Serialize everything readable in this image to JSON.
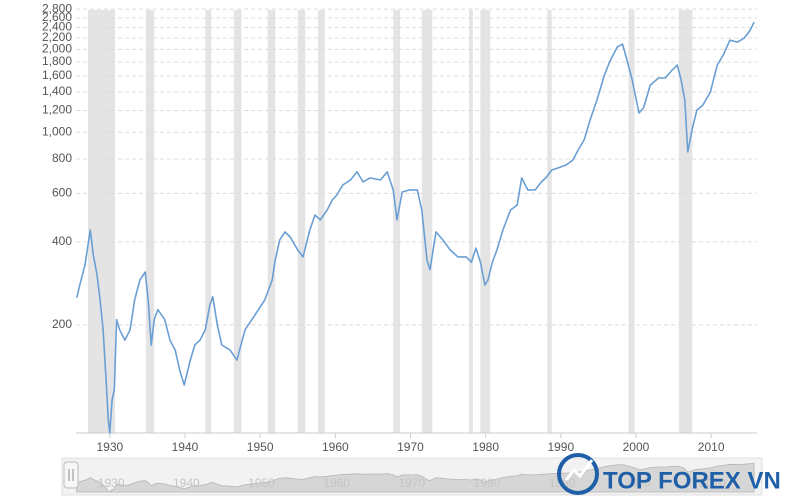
{
  "chart_data": {
    "type": "line",
    "log_scale": true,
    "grid": true,
    "color": "#6a9fd4",
    "band_color": "#e4e4e4",
    "watermark": "TOP FOREX VN",
    "xlim": [
      1925.5,
      2016.1
    ],
    "ylim": [
      81,
      2850
    ],
    "xticks": [
      1930,
      1940,
      1950,
      1960,
      1970,
      1980,
      1990,
      2000,
      2010
    ],
    "yticks": [
      200,
      400,
      600,
      800,
      {
        "value": 1000,
        "label": "1,000"
      },
      {
        "value": 1200,
        "label": "1,200"
      },
      {
        "value": 1400,
        "label": "1,400"
      },
      {
        "value": 1600,
        "label": "1,600"
      },
      {
        "value": 1800,
        "label": "1,800"
      },
      {
        "value": 2000,
        "label": "2,000"
      },
      {
        "value": 2200,
        "label": "2,200"
      },
      {
        "value": 2400,
        "label": "2,400"
      },
      {
        "value": 2600,
        "label": "2,600"
      },
      {
        "value": 2800,
        "label": "2,800"
      }
    ],
    "shaded_periods": [
      [
        1927.1,
        1930.7
      ],
      [
        1934.8,
        1935.9
      ],
      [
        1942.7,
        1943.5
      ],
      [
        1946.5,
        1947.5
      ],
      [
        1951.0,
        1952.0
      ],
      [
        1955.0,
        1956.0
      ],
      [
        1957.7,
        1958.6
      ],
      [
        1967.7,
        1968.6
      ],
      [
        1971.5,
        1972.9
      ],
      [
        1977.8,
        1978.3
      ],
      [
        1979.3,
        1980.6
      ],
      [
        1988.2,
        1988.8
      ],
      [
        1999.0,
        1999.8
      ],
      [
        2005.7,
        2007.5
      ]
    ],
    "x": [
      1925.6,
      1926.0,
      1926.7,
      1927.1,
      1927.4,
      1927.8,
      1928.3,
      1928.7,
      1929.1,
      1929.5,
      1929.8,
      1930.0,
      1930.3,
      1930.6,
      1930.9,
      1931.3,
      1932.0,
      1932.7,
      1933.3,
      1934.0,
      1934.7,
      1935.1,
      1935.5,
      1935.9,
      1936.4,
      1937.3,
      1938.0,
      1938.7,
      1939.3,
      1939.9,
      1940.7,
      1941.3,
      1942.0,
      1942.7,
      1943.3,
      1943.7,
      1944.3,
      1944.9,
      1946.0,
      1946.9,
      1948.0,
      1949.3,
      1950.6,
      1951.6,
      1952.0,
      1952.6,
      1953.3,
      1954.0,
      1955.0,
      1955.7,
      1956.6,
      1957.3,
      1958.0,
      1958.9,
      1959.6,
      1960.2,
      1961.0,
      1962.0,
      1962.9,
      1963.7,
      1964.6,
      1966.0,
      1966.9,
      1967.7,
      1968.2,
      1968.9,
      1969.9,
      1970.9,
      1971.5,
      1972.2,
      1972.6,
      1973.4,
      1974.3,
      1975.3,
      1976.3,
      1977.4,
      1978.1,
      1978.7,
      1979.3,
      1979.9,
      1980.3,
      1980.9,
      1981.5,
      1982.3,
      1983.3,
      1984.2,
      1984.8,
      1985.6,
      1986.6,
      1987.4,
      1988.0,
      1988.8,
      1989.6,
      1990.7,
      1991.6,
      1992.3,
      1993.1,
      1993.9,
      1994.8,
      1995.8,
      1996.6,
      1997.5,
      1998.2,
      1998.8,
      1999.5,
      2000.4,
      2001.0,
      2001.9,
      2003.0,
      2003.9,
      2004.8,
      2005.5,
      2006.0,
      2006.5,
      2006.9,
      2007.5,
      2008.1,
      2008.9,
      2009.9,
      2010.8,
      2011.6,
      2012.5,
      2013.5,
      2014.4,
      2015.2,
      2015.7
    ],
    "values": [
      251,
      279,
      330,
      390,
      442,
      359,
      304,
      246,
      192,
      126,
      90,
      81,
      107,
      116,
      209,
      192,
      176,
      192,
      246,
      291,
      311,
      246,
      169,
      209,
      227,
      209,
      176,
      162,
      137,
      121,
      149,
      169,
      176,
      192,
      236,
      253,
      200,
      169,
      162,
      149,
      192,
      217,
      246,
      291,
      344,
      407,
      435,
      417,
      374,
      353,
      442,
      501,
      481,
      522,
      568,
      592,
      644,
      671,
      718,
      660,
      683,
      671,
      718,
      618,
      481,
      607,
      618,
      618,
      522,
      344,
      317,
      435,
      407,
      374,
      353,
      353,
      338,
      380,
      338,
      279,
      291,
      338,
      374,
      442,
      522,
      545,
      683,
      618,
      618,
      660,
      683,
      730,
      742,
      761,
      793,
      862,
      938,
      1108,
      1309,
      1613,
      1829,
      2038,
      2090,
      1829,
      1548,
      1175,
      1225,
      1484,
      1574,
      1574,
      1682,
      1754,
      1548,
      1309,
      848,
      1036,
      1204,
      1256,
      1400,
      1754,
      1906,
      2160,
      2126,
      2198,
      2350,
      2511
    ]
  }
}
